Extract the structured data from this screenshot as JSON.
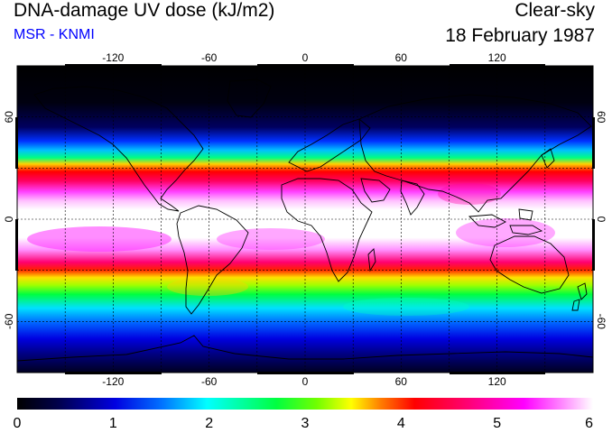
{
  "header": {
    "title": "DNA-damage UV dose (kJ/m2)",
    "source": "MSR - KNMI",
    "condition": "Clear-sky",
    "date": "18 February 1987"
  },
  "colors": {
    "source_text": "#0000ff",
    "colormap": [
      "#000000",
      "#00004a",
      "#0000d0",
      "#0070ff",
      "#00ffff",
      "#00ff40",
      "#70ff00",
      "#ffff00",
      "#ff8000",
      "#ff0000",
      "#ff0070",
      "#ff00ff",
      "#ffffff"
    ]
  },
  "map": {
    "lon_ticks": [
      "-120",
      "-60",
      "0",
      "60",
      "120"
    ],
    "lat_ticks": [
      "60",
      "0",
      "-60"
    ],
    "grid": "dashed-30deg",
    "projection": "equirectangular",
    "lon_range": [
      -180,
      180
    ],
    "lat_range": [
      -90,
      90
    ],
    "coastlines": true
  },
  "colorbar": {
    "min": 0,
    "max": 6,
    "labels": [
      "0",
      "1",
      "2",
      "3",
      "4",
      "5",
      "6"
    ]
  }
}
